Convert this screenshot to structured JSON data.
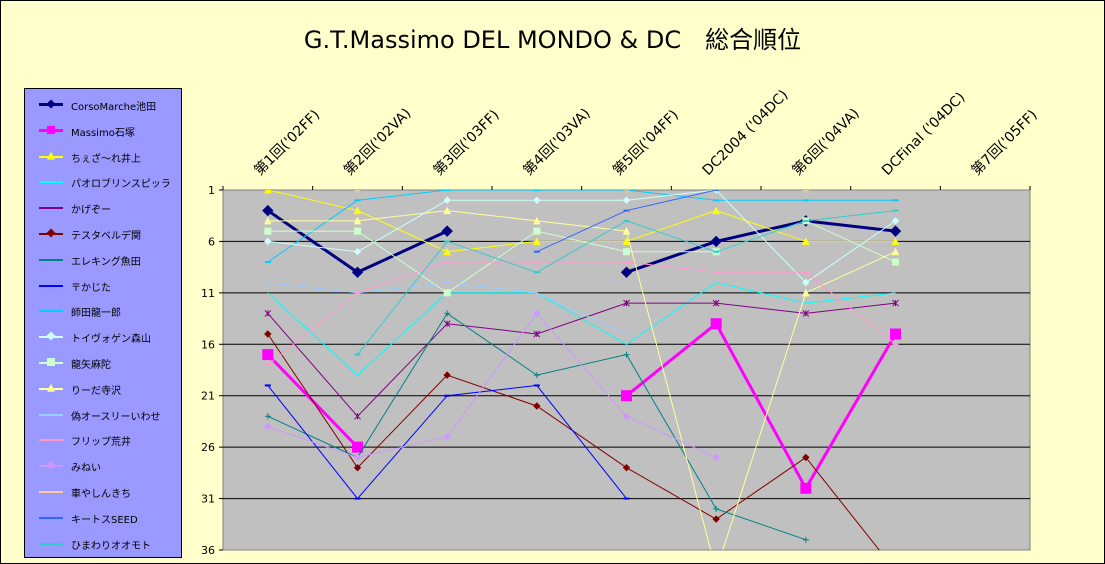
{
  "chart_data": {
    "type": "line",
    "title": "G.T.Massimo DEL MONDO & DC　総合順位",
    "categories": [
      "第1回('02FF)",
      "第2回('02VA)",
      "第3回('03FF)",
      "第4回('03VA)",
      "第5回('04FF)",
      "DC2004 ('04DC)",
      "第6回('04VA)",
      "DCFinal ('04DC)",
      "第7回('05FF)"
    ],
    "y_ticks": [
      "1",
      "6",
      "11",
      "16",
      "21",
      "26",
      "31",
      "36"
    ],
    "ylim": [
      1,
      36
    ],
    "y_inverted": true,
    "grid": "horizontal",
    "plot_background": "#c0c0c0",
    "legend_position": "left",
    "series": [
      {
        "name": "CorsoMarche池田",
        "color": "#000080",
        "marker": "diamond",
        "bold": true,
        "values": [
          3,
          9,
          5,
          null,
          9,
          6,
          4,
          5,
          null
        ]
      },
      {
        "name": "Massimo石塚",
        "color": "#ff00ff",
        "marker": "square",
        "bold": true,
        "values": [
          17,
          26,
          null,
          null,
          21,
          14,
          30,
          15,
          null
        ]
      },
      {
        "name": "ちぇざ～れ井上",
        "color": "#ffff00",
        "marker": "triangle",
        "values": [
          1,
          3,
          7,
          6,
          6,
          3,
          6,
          6,
          null
        ]
      },
      {
        "name": "パオロブリンスピッラ",
        "color": "#00ffff",
        "marker": "none",
        "values": [
          11,
          19,
          11,
          11,
          16,
          10,
          12,
          11,
          null
        ]
      },
      {
        "name": "かげぞー",
        "color": "#800080",
        "marker": "star",
        "values": [
          13,
          23,
          14,
          15,
          12,
          12,
          13,
          12,
          null
        ]
      },
      {
        "name": "テスタベルデ関",
        "color": "#800000",
        "marker": "diamond",
        "values": [
          15,
          28,
          19,
          22,
          28,
          33,
          27,
          38,
          null
        ]
      },
      {
        "name": "エレキング魚田",
        "color": "#008080",
        "marker": "plus",
        "values": [
          23,
          27,
          13,
          19,
          17,
          32,
          35,
          null,
          null
        ]
      },
      {
        "name": "〒かじた",
        "color": "#0000ff",
        "marker": "dash",
        "values": [
          20,
          31,
          21,
          20,
          31,
          null,
          null,
          null,
          null
        ]
      },
      {
        "name": "師田龍一郎",
        "color": "#00ccff",
        "marker": "dash",
        "values": [
          8,
          2,
          1,
          1,
          1,
          2,
          2,
          2,
          null
        ]
      },
      {
        "name": "トイヴォゲン森山",
        "color": "#ccffff",
        "marker": "diamond",
        "values": [
          6,
          7,
          2,
          2,
          2,
          1,
          10,
          4,
          null
        ]
      },
      {
        "name": "龍矢麻陀",
        "color": "#ccffcc",
        "marker": "square",
        "values": [
          5,
          5,
          11,
          5,
          7,
          7,
          4,
          8,
          null
        ]
      },
      {
        "name": "りーだ寺沢",
        "color": "#ffff99",
        "marker": "triangle",
        "values": [
          4,
          4,
          3,
          4,
          5,
          38,
          11,
          7,
          null
        ]
      },
      {
        "name": "偽オースリーいわせ",
        "color": "#99ccff",
        "marker": "none",
        "values": [
          10,
          11,
          10,
          11,
          15,
          null,
          null,
          null,
          null
        ]
      },
      {
        "name": "フリップ荒井",
        "color": "#ff99cc",
        "marker": "dash",
        "values": [
          18,
          11,
          8,
          8,
          8,
          9,
          9,
          16,
          null
        ]
      },
      {
        "name": "みねい",
        "color": "#cc99ff",
        "marker": "diamond",
        "values": [
          24,
          27,
          25,
          13,
          23,
          27,
          null,
          null,
          null
        ]
      },
      {
        "name": "車やしんきち",
        "color": "#ffcc99",
        "marker": "plus",
        "values": [
          null,
          1,
          null,
          null,
          1,
          null,
          1,
          null,
          null
        ]
      },
      {
        "name": "キートスSEED",
        "color": "#3366ff",
        "marker": "dash",
        "values": [
          null,
          null,
          null,
          7,
          3,
          1,
          null,
          null,
          null
        ]
      },
      {
        "name": "ひまわりオオモト",
        "color": "#33cccc",
        "marker": "dash",
        "values": [
          null,
          17,
          6,
          9,
          4,
          7,
          4,
          3,
          null
        ]
      }
    ]
  }
}
